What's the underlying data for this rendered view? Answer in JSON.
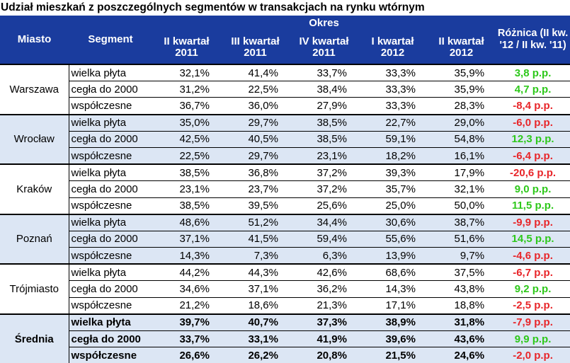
{
  "title": "Udział mieszkań z poszczególnych segmentów w transakcjach na rynku wtórnym",
  "header": {
    "city": "Miasto",
    "segment": "Segment",
    "period": "Okres",
    "periods": [
      "II kwartał 2011",
      "III kwartał 2011",
      "IV kwartał 2011",
      "I kwartał 2012",
      "II kwartał 2012"
    ],
    "diff": "Różnica (II kw. '12 / II kw. '11)"
  },
  "colors": {
    "header_bg": "#1a3c9e",
    "shade": "#dce6f4",
    "positive": "#2ec81b",
    "negative": "#e8262a"
  },
  "groups": [
    {
      "city": "Warszawa",
      "shaded": false,
      "bold": false,
      "rows": [
        {
          "segment": "wielka płyta",
          "values": [
            "32,1%",
            "41,4%",
            "33,7%",
            "33,3%",
            "35,9%"
          ],
          "diff": "3,8 p.p.",
          "sign": "pos"
        },
        {
          "segment": "cegła do 2000",
          "values": [
            "31,2%",
            "22,5%",
            "38,4%",
            "33,3%",
            "35,9%"
          ],
          "diff": "4,7 p.p.",
          "sign": "pos"
        },
        {
          "segment": "współczesne",
          "values": [
            "36,7%",
            "36,0%",
            "27,9%",
            "33,3%",
            "28,3%"
          ],
          "diff": "-8,4 p.p.",
          "sign": "neg"
        }
      ]
    },
    {
      "city": "Wrocław",
      "shaded": true,
      "bold": false,
      "rows": [
        {
          "segment": "wielka płyta",
          "values": [
            "35,0%",
            "29,7%",
            "38,5%",
            "22,7%",
            "29,0%"
          ],
          "diff": "-6,0 p.p.",
          "sign": "neg"
        },
        {
          "segment": "cegła do 2000",
          "values": [
            "42,5%",
            "40,5%",
            "38,5%",
            "59,1%",
            "54,8%"
          ],
          "diff": "12,3 p.p.",
          "sign": "pos"
        },
        {
          "segment": "współczesne",
          "values": [
            "22,5%",
            "29,7%",
            "23,1%",
            "18,2%",
            "16,1%"
          ],
          "diff": "-6,4 p.p.",
          "sign": "neg"
        }
      ]
    },
    {
      "city": "Kraków",
      "shaded": false,
      "bold": false,
      "rows": [
        {
          "segment": "wielka płyta",
          "values": [
            "38,5%",
            "36,8%",
            "37,2%",
            "39,3%",
            "17,9%"
          ],
          "diff": "-20,6 p.p.",
          "sign": "neg"
        },
        {
          "segment": "cegła do 2000",
          "values": [
            "23,1%",
            "23,7%",
            "37,2%",
            "35,7%",
            "32,1%"
          ],
          "diff": "9,0 p.p.",
          "sign": "pos"
        },
        {
          "segment": "współczesne",
          "values": [
            "38,5%",
            "39,5%",
            "25,6%",
            "25,0%",
            "50,0%"
          ],
          "diff": "11,5 p.p.",
          "sign": "pos"
        }
      ]
    },
    {
      "city": "Poznań",
      "shaded": true,
      "bold": false,
      "rows": [
        {
          "segment": "wielka płyta",
          "values": [
            "48,6%",
            "51,2%",
            "34,4%",
            "30,6%",
            "38,7%"
          ],
          "diff": "-9,9 p.p.",
          "sign": "neg"
        },
        {
          "segment": "cegła do 2000",
          "values": [
            "37,1%",
            "41,5%",
            "59,4%",
            "55,6%",
            "51,6%"
          ],
          "diff": "14,5 p.p.",
          "sign": "pos"
        },
        {
          "segment": "współczesne",
          "values": [
            "14,3%",
            "7,3%",
            "6,3%",
            "13,9%",
            "9,7%"
          ],
          "diff": "-4,6 p.p.",
          "sign": "neg"
        }
      ]
    },
    {
      "city": "Trójmiasto",
      "shaded": false,
      "bold": false,
      "rows": [
        {
          "segment": "wielka płyta",
          "values": [
            "44,2%",
            "44,3%",
            "42,6%",
            "68,6%",
            "37,5%"
          ],
          "diff": "-6,7 p.p.",
          "sign": "neg"
        },
        {
          "segment": "cegła do 2000",
          "values": [
            "34,6%",
            "37,1%",
            "36,2%",
            "14,3%",
            "43,8%"
          ],
          "diff": "9,2 p.p.",
          "sign": "pos"
        },
        {
          "segment": "współczesne",
          "values": [
            "21,2%",
            "18,6%",
            "21,3%",
            "17,1%",
            "18,8%"
          ],
          "diff": "-2,5 p.p.",
          "sign": "neg"
        }
      ]
    },
    {
      "city": "Średnia",
      "shaded": true,
      "bold": true,
      "rows": [
        {
          "segment": "wielka płyta",
          "values": [
            "39,7%",
            "40,7%",
            "37,3%",
            "38,9%",
            "31,8%"
          ],
          "diff": "-7,9 p.p.",
          "sign": "neg"
        },
        {
          "segment": "cegła do 2000",
          "values": [
            "33,7%",
            "33,1%",
            "41,9%",
            "39,6%",
            "43,6%"
          ],
          "diff": "9,9 p.p.",
          "sign": "pos"
        },
        {
          "segment": "współczesne",
          "values": [
            "26,6%",
            "26,2%",
            "20,8%",
            "21,5%",
            "24,6%"
          ],
          "diff": "-2,0 p.p.",
          "sign": "neg"
        }
      ]
    }
  ]
}
